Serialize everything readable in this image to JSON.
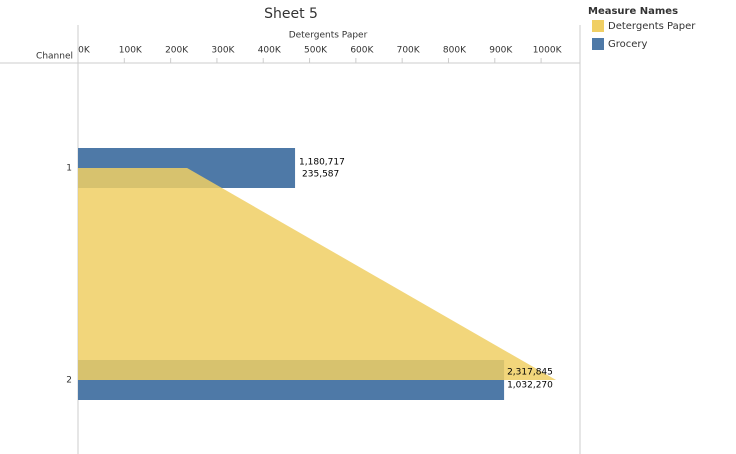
{
  "chart_data": {
    "type": "bar",
    "title": "Sheet 5",
    "orientation": "horizontal",
    "x_label": "Detergents Paper",
    "y_label": "Channel",
    "categories": [
      "1",
      "2"
    ],
    "xlim": [
      0,
      1084000
    ],
    "xticks": [
      {
        "value": 0,
        "label": "0K"
      },
      {
        "value": 100000,
        "label": "100K"
      },
      {
        "value": 200000,
        "label": "200K"
      },
      {
        "value": 300000,
        "label": "300K"
      },
      {
        "value": 400000,
        "label": "400K"
      },
      {
        "value": 500000,
        "label": "500K"
      },
      {
        "value": 600000,
        "label": "600K"
      },
      {
        "value": 700000,
        "label": "700K"
      },
      {
        "value": 800000,
        "label": "800K"
      },
      {
        "value": 900000,
        "label": "900K"
      },
      {
        "value": 1000000,
        "label": "1000K"
      }
    ],
    "x2lim": [
      0,
      2730800
    ],
    "legend_title": "Measure Names",
    "series": [
      {
        "name": "Detergents Paper",
        "color": "#f0cf64",
        "mark": "area",
        "values": [
          235587,
          1032270
        ],
        "value_labels": [
          "235,587",
          "1,032,270"
        ]
      },
      {
        "name": "Grocery",
        "color": "#4e79a7",
        "mark": "bar",
        "axis": "x2",
        "values": [
          1180717,
          2317845
        ],
        "value_labels": [
          "1,180,717",
          "2,317,845"
        ]
      }
    ]
  }
}
